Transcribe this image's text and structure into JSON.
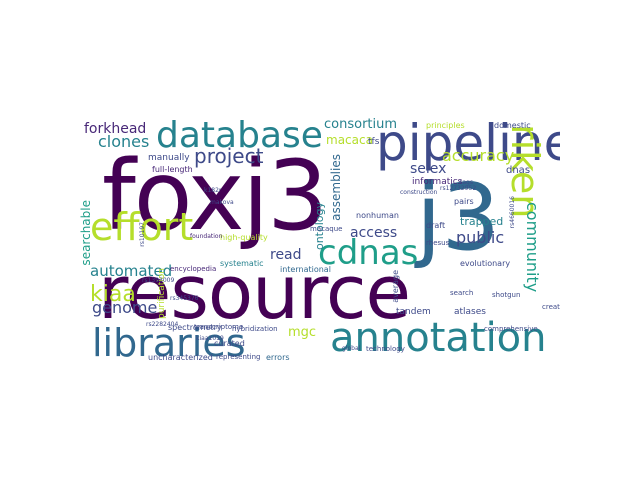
{
  "words": {
    "foxj3": "foxj3",
    "resource": "resource",
    "j3": "j3",
    "pipeline": "pipeline",
    "database": "database",
    "annotation": "annotation",
    "libraries": "libraries",
    "effort": "effort",
    "cdnas": "cdnas",
    "riken": "riken",
    "project": "project",
    "kiaa": "kiaa",
    "clones": "clones",
    "forkhead": "forkhead",
    "consortium": "consortium",
    "accuracy": "accuracy",
    "community": "community",
    "automated": "automated",
    "genome": "genome",
    "searchable": "searchable",
    "selex": "selex",
    "access": "access",
    "public": "public",
    "read": "read",
    "macaca": "macaca",
    "assemblies": "assemblies",
    "mgc": "mgc",
    "ontology": "ontology",
    "manually": "manually",
    "full_length": "full-length",
    "purification": "purification",
    "trapped": "trapped",
    "evolutionary": "evolutionary",
    "dnas": "dnas",
    "informatics": "informatics",
    "principles": "principles",
    "domestic": "domestic",
    "tandem": "tandem",
    "atlases": "atlases",
    "comprehensive": "comprehensive",
    "errors": "errors",
    "curated": "curated",
    "uncharacterized": "uncharacterized",
    "spectrometry": "spectrometry",
    "hybridization": "hybridization",
    "international": "international",
    "systematic": "systematic",
    "high_quality": "high-quality",
    "encyclopedia": "encyclopedia",
    "foundation": "foundation",
    "nonhuman": "nonhuman",
    "macaque": "macaque",
    "average": "average",
    "tfs": "tfs",
    "draft": "draft",
    "pairs": "pairs",
    "search": "search",
    "shotgun": "shotgun",
    "created": "created",
    "representing": "representing",
    "transcriptome": "transcriptome",
    "global": "global",
    "technology": "technology",
    "kiaa1019": "kiaa1019",
    "rhesus": "rhesus",
    "tags": "tags",
    "construction": "construction",
    "makova": "makova",
    "k182r": "k182r",
    "rs2282404": "rs2282404",
    "rs345376": "rs345376",
    "rs1393009": "rs1393009",
    "rs4660016": "rs4660016",
    "rs12732952": "rs12732952",
    "rs10197": "rs10197"
  },
  "colors": {
    "dark_purple": "#440154",
    "indigo": "#482878",
    "blue_violet": "#3e4a89",
    "slate_blue": "#31688e",
    "teal": "#26828e",
    "sea_green": "#1f9e89",
    "green": "#35b779",
    "light_green": "#6ece58",
    "lime": "#b5de2b",
    "yellow": "#fde725"
  }
}
